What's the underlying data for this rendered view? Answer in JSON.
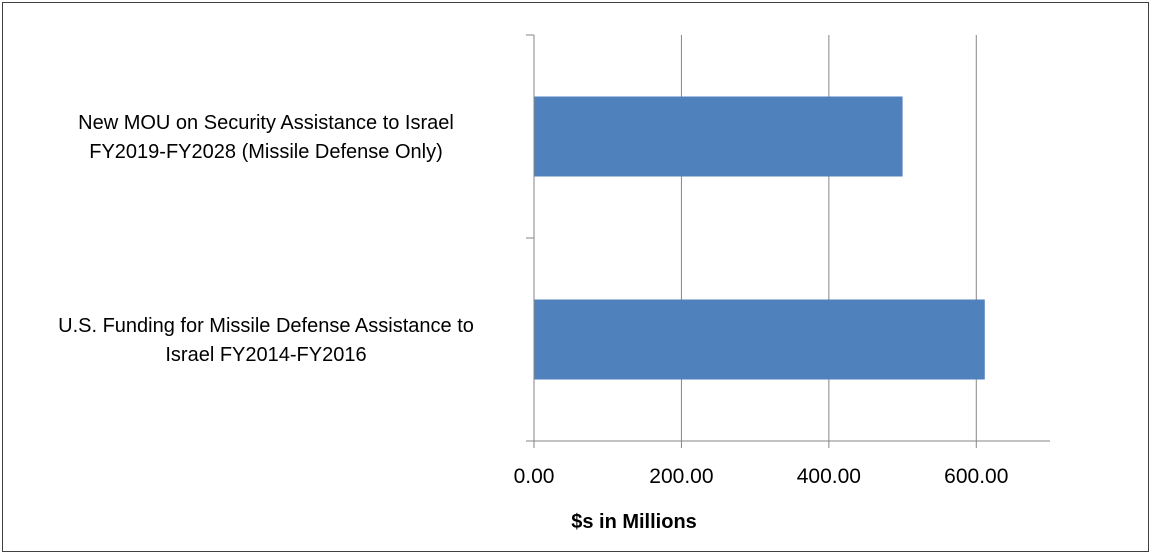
{
  "chart_data": {
    "type": "bar",
    "orientation": "horizontal",
    "categories": [
      [
        "New MOU on Security Assistance to Israel",
        "FY2019-FY2028 (Missile Defense Only)"
      ],
      [
        "U.S. Funding for Missile Defense Assistance to",
        "Israel FY2014-FY2016"
      ]
    ],
    "values": [
      500,
      611.5
    ],
    "xlabel": "$s in Millions",
    "xlim": [
      0,
      700
    ],
    "xticks": [
      "0.00",
      "200.00",
      "400.00",
      "600.00"
    ],
    "xtick_values": [
      0,
      200,
      400,
      600
    ],
    "grid": "vertical",
    "legend": "none",
    "bar_color": "#4f81bd",
    "grid_color": "#868686",
    "axis_color": "#868686"
  }
}
